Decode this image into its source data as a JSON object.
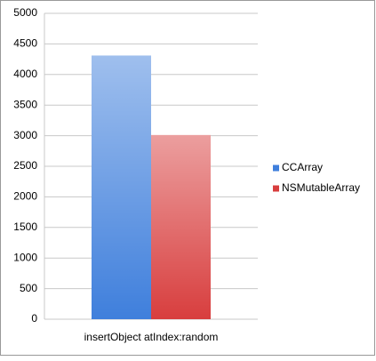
{
  "chart_data": {
    "type": "bar",
    "categories": [
      "insertObject atIndex:random"
    ],
    "series": [
      {
        "name": "CCArray",
        "color": "#3f7fdc",
        "values": [
          4310
        ]
      },
      {
        "name": "NSMutableArray",
        "color": "#d83e3e",
        "values": [
          3010
        ]
      }
    ],
    "ylim": [
      0,
      5000
    ],
    "yticks": [
      0,
      500,
      1000,
      1500,
      2000,
      2500,
      3000,
      3500,
      4000,
      4500,
      5000
    ],
    "grid": true,
    "legend": "right"
  }
}
